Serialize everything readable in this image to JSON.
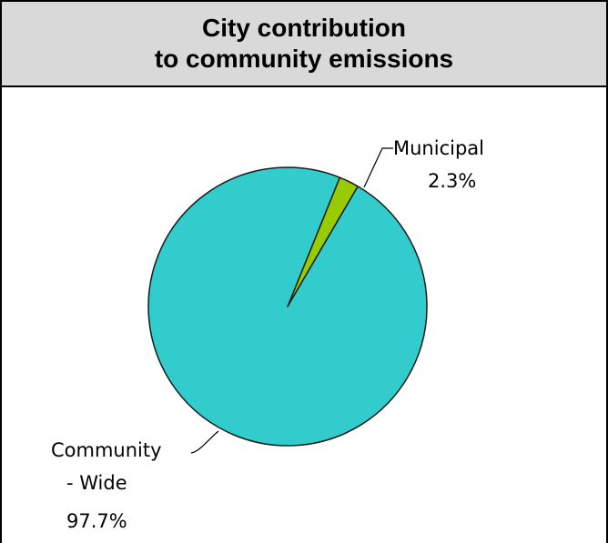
{
  "chart_data": {
    "type": "pie",
    "title_lines": [
      "City contribution",
      "to community emissions"
    ],
    "slices": [
      {
        "label_lines": [
          "Municipal",
          "2.3%"
        ],
        "value": 2.3,
        "color": "#99cc00"
      },
      {
        "label_lines": [
          "Community",
          "- Wide",
          "97.7%"
        ],
        "value": 97.7,
        "color": "#33cccc"
      }
    ],
    "start_angle_deg": 22,
    "legend": "none",
    "outline_color": "#1a1a1a"
  }
}
